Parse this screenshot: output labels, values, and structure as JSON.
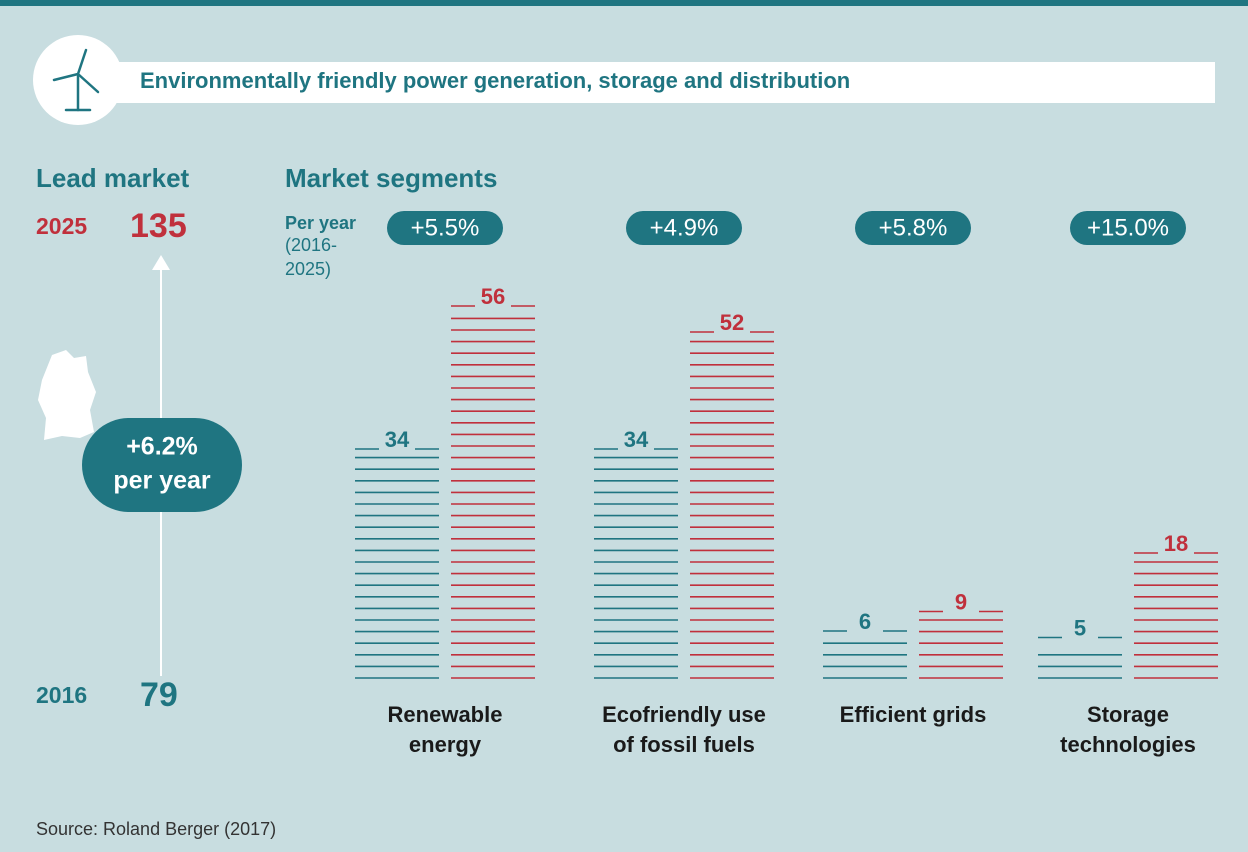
{
  "title": "Environmentally friendly power generation, storage and distribution",
  "lead_market": {
    "title": "Lead market",
    "start_value": 79,
    "end_value": 135,
    "growth": "+6.2%",
    "growth_unit": "per year"
  },
  "chart_data": {
    "type": "bar",
    "title": "Market segments",
    "per_year_label": "Per year",
    "period_label": "(2016-2025)",
    "categories": [
      "Renewable energy",
      "Ecofriendly use of fossil fuels",
      "Efficient grids",
      "Storage technologies"
    ],
    "growth_labels": [
      "+5.5%",
      "+4.9%",
      "+5.8%",
      "+15.0%"
    ],
    "series": [
      {
        "name": "2016",
        "color": "#1f7581",
        "values": [
          34,
          34,
          6,
          5
        ]
      },
      {
        "name": "2025",
        "color": "#c0303c",
        "values": [
          56,
          52,
          9,
          18
        ]
      }
    ]
  },
  "source": "Source: Roland Berger (2017)"
}
